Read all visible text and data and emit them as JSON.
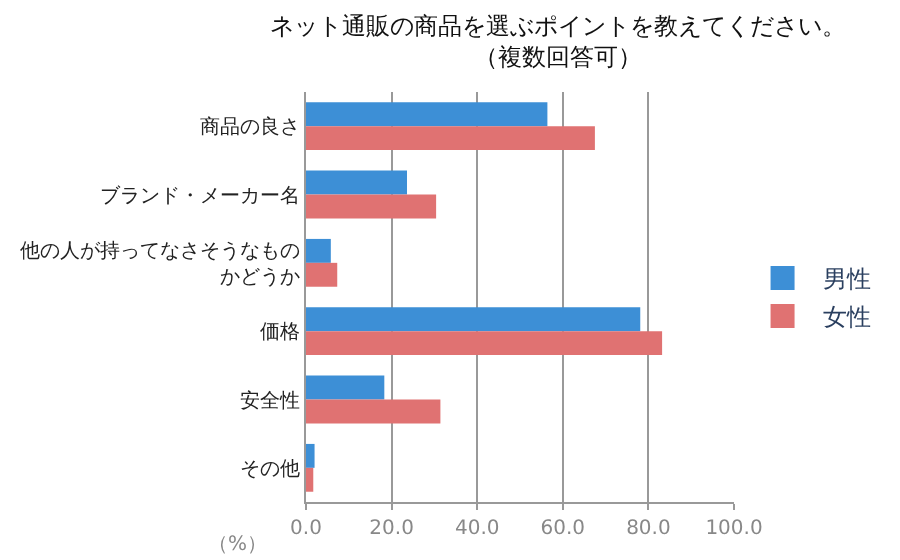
{
  "chart_data": {
    "type": "bar",
    "orientation": "horizontal",
    "title": "ネット通販の商品を選ぶポイントを教えてください。",
    "subtitle": "（複数回答可）",
    "xlabel": "（%）",
    "categories": [
      "商品の良さ",
      "ブランド・メーカー名",
      "他の人が持ってなさそうなものかどうか",
      "価格",
      "安全性",
      "その他"
    ],
    "series": [
      {
        "name": "男性",
        "color": "#3d8fd6",
        "values": [
          56.4,
          23.6,
          5.8,
          78.1,
          18.3,
          2.0
        ]
      },
      {
        "name": "女性",
        "color": "#e07272",
        "values": [
          67.5,
          30.4,
          7.3,
          83.2,
          31.4,
          1.7
        ]
      }
    ],
    "xlim": [
      0,
      100
    ],
    "xticks": [
      {
        "value": 0,
        "label": "0.0"
      },
      {
        "value": 20,
        "label": "20.0"
      },
      {
        "value": 40,
        "label": "40.0"
      },
      {
        "value": 60,
        "label": "60.0"
      },
      {
        "value": 80,
        "label": "80.0"
      },
      {
        "value": 100,
        "label": "100.0"
      }
    ],
    "grid": "x",
    "legend": "right"
  }
}
